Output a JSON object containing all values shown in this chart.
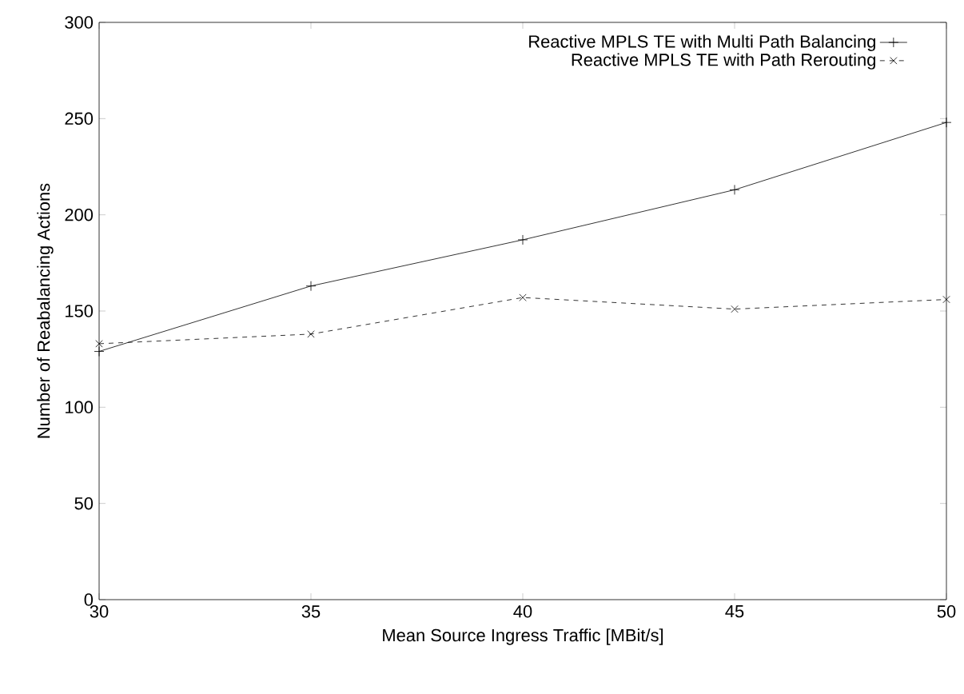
{
  "chart_data": {
    "type": "line",
    "xlabel": "Mean Source Ingress Traffic [MBit/s]",
    "ylabel": "Number of Reabalancing Actions",
    "x": [
      30,
      35,
      40,
      45,
      50
    ],
    "series": [
      {
        "name": "Reactive MPLS TE with Multi Path Balancing",
        "color": "#000000",
        "values": [
          129,
          163,
          187,
          213,
          248
        ],
        "marker": "cross",
        "line_style": "solid"
      },
      {
        "name": "Reactive MPLS TE with Path Rerouting",
        "color": "#000000",
        "values": [
          133,
          138,
          157,
          151,
          156
        ],
        "marker": "x",
        "line_style": "dashed"
      }
    ],
    "xlim": [
      30,
      50
    ],
    "xticks": [
      30,
      35,
      40,
      45,
      50
    ],
    "ylim": [
      0,
      300
    ],
    "yticks": [
      0,
      50,
      100,
      150,
      200,
      250,
      300
    ],
    "grid": false,
    "legend": "top right"
  }
}
